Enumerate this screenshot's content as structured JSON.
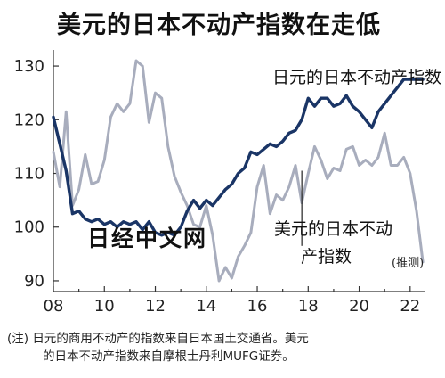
{
  "title": "美元的日本不动产指数在走低",
  "note_line1": "(注) 日元的商用不动产的指数来自日本国土交通省。美元",
  "note_line2": "的日本不动产指数来自摩根士丹利MUFG证券。",
  "watermark": "日经中文网",
  "chart_data": {
    "type": "line",
    "title": "美元的日本不动产指数在走低",
    "xlabel": "",
    "ylabel": "",
    "x_ticks": [
      "08",
      "10",
      "12",
      "14",
      "16",
      "18",
      "20",
      "22"
    ],
    "y_ticks": [
      90,
      100,
      110,
      120,
      130
    ],
    "xlim": [
      2008,
      2022.6
    ],
    "ylim": [
      88,
      133
    ],
    "grid": false,
    "colors": {
      "yen": "#1a3566",
      "usd": "#a8adbd"
    },
    "series": [
      {
        "name": "日元的日本不动产指数",
        "x": [
          2008.0,
          2008.25,
          2008.5,
          2008.75,
          2009.0,
          2009.25,
          2009.5,
          2009.75,
          2010.0,
          2010.25,
          2010.5,
          2010.75,
          2011.0,
          2011.25,
          2011.5,
          2011.75,
          2012.0,
          2012.25,
          2012.5,
          2012.75,
          2013.0,
          2013.25,
          2013.5,
          2013.75,
          2014.0,
          2014.25,
          2014.5,
          2014.75,
          2015.0,
          2015.25,
          2015.5,
          2015.75,
          2016.0,
          2016.25,
          2016.5,
          2016.75,
          2017.0,
          2017.25,
          2017.5,
          2017.75,
          2018.0,
          2018.25,
          2018.5,
          2018.75,
          2019.0,
          2019.25,
          2019.5,
          2019.75,
          2020.0,
          2020.25,
          2020.5,
          2020.75,
          2021.0,
          2021.25,
          2021.5,
          2021.75,
          2022.0,
          2022.25,
          2022.5
        ],
        "values": [
          120.5,
          115.5,
          110.5,
          102.5,
          103.0,
          101.5,
          101.0,
          101.5,
          100.5,
          101.0,
          100.0,
          101.0,
          100.5,
          101.0,
          99.5,
          101.0,
          99.0,
          98.5,
          99.0,
          98.5,
          100.0,
          103.0,
          105.0,
          103.5,
          105.0,
          104.0,
          105.5,
          107.0,
          108.0,
          110.0,
          111.0,
          114.0,
          113.5,
          114.5,
          115.5,
          115.0,
          116.0,
          117.5,
          118.0,
          120.0,
          124.0,
          122.5,
          124.0,
          124.0,
          122.5,
          123.0,
          124.5,
          122.5,
          121.5,
          120.0,
          118.5,
          121.5,
          123.0,
          124.5,
          126.0,
          127.5,
          127.5,
          127.5,
          127.5
        ]
      },
      {
        "name": "美元的日本不动产指数",
        "estimate_label": "(推测)",
        "x": [
          2008.0,
          2008.25,
          2008.5,
          2008.75,
          2009.0,
          2009.25,
          2009.5,
          2009.75,
          2010.0,
          2010.25,
          2010.5,
          2010.75,
          2011.0,
          2011.25,
          2011.5,
          2011.75,
          2012.0,
          2012.25,
          2012.5,
          2012.75,
          2013.0,
          2013.25,
          2013.5,
          2013.75,
          2014.0,
          2014.25,
          2014.5,
          2014.75,
          2015.0,
          2015.25,
          2015.5,
          2015.75,
          2016.0,
          2016.25,
          2016.5,
          2016.75,
          2017.0,
          2017.25,
          2017.5,
          2017.75,
          2018.0,
          2018.25,
          2018.5,
          2018.75,
          2019.0,
          2019.25,
          2019.5,
          2019.75,
          2020.0,
          2020.25,
          2020.5,
          2020.75,
          2021.0,
          2021.25,
          2021.5,
          2021.75,
          2022.0,
          2022.25,
          2022.5
        ],
        "values": [
          114.0,
          107.5,
          121.5,
          104.0,
          107.0,
          113.5,
          108.0,
          108.5,
          112.5,
          120.5,
          123.0,
          121.5,
          123.0,
          131.0,
          130.0,
          119.5,
          125.0,
          124.0,
          115.0,
          109.5,
          106.5,
          104.0,
          100.5,
          100.0,
          104.0,
          98.5,
          90.0,
          92.5,
          90.5,
          94.5,
          96.5,
          99.0,
          107.5,
          111.5,
          102.5,
          106.0,
          105.0,
          107.5,
          111.5,
          104.5,
          110.0,
          115.0,
          112.5,
          109.0,
          111.0,
          110.5,
          114.5,
          115.0,
          111.5,
          112.5,
          111.5,
          113.0,
          117.5,
          111.5,
          111.5,
          113.0,
          110.0,
          103.0,
          93.5
        ]
      }
    ]
  }
}
